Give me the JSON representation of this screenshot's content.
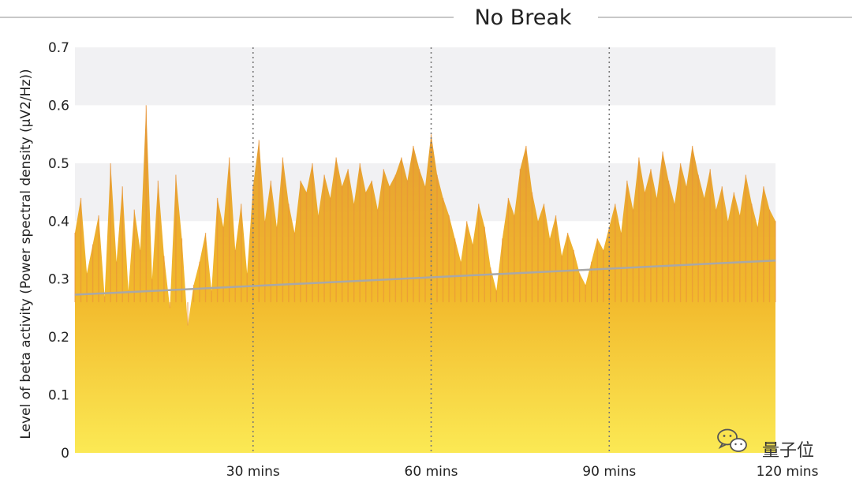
{
  "chart_data": {
    "type": "area",
    "title": "No Break",
    "ylabel": "Level of beta activity (Power spectral density (μV2/Hz))",
    "xlabel": "",
    "ylim": [
      0,
      0.7
    ],
    "xlim": [
      0,
      118
    ],
    "y_ticks": [
      {
        "value": 0,
        "label": "0"
      },
      {
        "value": 0.1,
        "label": "0.1"
      },
      {
        "value": 0.2,
        "label": "0.2"
      },
      {
        "value": 0.3,
        "label": "0.3"
      },
      {
        "value": 0.4,
        "label": "0.4"
      },
      {
        "value": 0.5,
        "label": "0.5"
      },
      {
        "value": 0.6,
        "label": "0.6"
      },
      {
        "value": 0.7,
        "label": "0.7"
      }
    ],
    "x_ticks": [
      {
        "value": 30,
        "label": "30 mins"
      },
      {
        "value": 60,
        "label": "60 mins"
      },
      {
        "value": 90,
        "label": "90 mins"
      },
      {
        "value": 120,
        "label": "120 mins"
      }
    ],
    "vlines": [
      30,
      60,
      90
    ],
    "grid_bands": [
      [
        0.6,
        0.7
      ],
      [
        0.4,
        0.5
      ]
    ],
    "series": [
      {
        "x": [
          0,
          1,
          2,
          3,
          4,
          5,
          6,
          7,
          8,
          9,
          10,
          11,
          12,
          13,
          14,
          15,
          16,
          17,
          18,
          19,
          20,
          21,
          22,
          23,
          24,
          25,
          26,
          27,
          28,
          29,
          30,
          31,
          32,
          33,
          34,
          35,
          36,
          37,
          38,
          39,
          40,
          41,
          42,
          43,
          44,
          45,
          46,
          47,
          48,
          49,
          50,
          51,
          52,
          53,
          54,
          55,
          56,
          57,
          58,
          59,
          60,
          61,
          62,
          63,
          64,
          65,
          66,
          67,
          68,
          69,
          70,
          71,
          72,
          73,
          74,
          75,
          76,
          77,
          78,
          79,
          80,
          81,
          82,
          83,
          84,
          85,
          86,
          87,
          88,
          89,
          90,
          91,
          92,
          93,
          94,
          95,
          96,
          97,
          98,
          99,
          100,
          101,
          102,
          103,
          104,
          105,
          106,
          107,
          108,
          109,
          110,
          111,
          112,
          113,
          114,
          115,
          116,
          117,
          118
        ],
        "values": [
          0.38,
          0.44,
          0.31,
          0.36,
          0.41,
          0.27,
          0.5,
          0.33,
          0.46,
          0.28,
          0.42,
          0.35,
          0.6,
          0.3,
          0.47,
          0.34,
          0.25,
          0.48,
          0.37,
          0.22,
          0.29,
          0.33,
          0.38,
          0.28,
          0.44,
          0.39,
          0.51,
          0.35,
          0.43,
          0.31,
          0.46,
          0.54,
          0.4,
          0.47,
          0.39,
          0.51,
          0.43,
          0.38,
          0.47,
          0.45,
          0.5,
          0.41,
          0.48,
          0.44,
          0.51,
          0.46,
          0.49,
          0.43,
          0.5,
          0.45,
          0.47,
          0.42,
          0.49,
          0.46,
          0.48,
          0.51,
          0.47,
          0.53,
          0.49,
          0.46,
          0.55,
          0.48,
          0.44,
          0.41,
          0.37,
          0.33,
          0.4,
          0.36,
          0.43,
          0.39,
          0.32,
          0.28,
          0.37,
          0.44,
          0.41,
          0.49,
          0.53,
          0.45,
          0.4,
          0.43,
          0.37,
          0.41,
          0.34,
          0.38,
          0.35,
          0.31,
          0.29,
          0.33,
          0.37,
          0.35,
          0.39,
          0.43,
          0.38,
          0.47,
          0.42,
          0.51,
          0.45,
          0.49,
          0.44,
          0.52,
          0.47,
          0.43,
          0.5,
          0.46,
          0.53,
          0.48,
          0.44,
          0.49,
          0.42,
          0.46,
          0.4,
          0.45,
          0.41,
          0.48,
          0.43,
          0.39,
          0.46,
          0.42,
          0.4
        ]
      }
    ],
    "trend_line": {
      "from": [
        0,
        0.273
      ],
      "to": [
        118,
        0.332
      ]
    },
    "colors": {
      "fill_bottom": "#fbe954",
      "fill_mid": "#f2b92c",
      "fill_top": "#e39a32",
      "spike": "#e8913a",
      "trend": "#a8a8a8",
      "grid_band": "#f1f1f3",
      "vline": "#777777",
      "title_rule": "#b5b5b5"
    }
  },
  "watermark": {
    "text": "量子位",
    "icon": "wechat-icon"
  }
}
